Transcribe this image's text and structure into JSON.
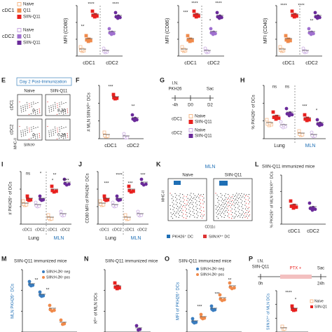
{
  "legend_D": {
    "groups": [
      {
        "name": "cDC1",
        "items": [
          "Naive",
          "Q11",
          "SIIN-Q11"
        ]
      },
      {
        "name": "cDC2",
        "items": [
          "Naive",
          "Q11",
          "SIIN-Q11"
        ]
      }
    ]
  },
  "panels": [
    {
      "y_label": "MFI (CD80)",
      "x_labels": [
        "cDC1",
        "cDC2"
      ],
      "stats": [
        "**",
        "****",
        "****"
      ]
    },
    {
      "y_label": "MFI (CD86)",
      "x_labels": [
        "cDC1",
        "cDC2"
      ],
      "stats": [
        "***",
        "****",
        "*",
        "****"
      ]
    },
    {
      "y_label": "MFI (CD40)",
      "x_labels": [
        "cDC1",
        "cDC2"
      ],
      "stats": [
        "****",
        "****",
        "**"
      ]
    },
    {
      "letter": "E",
      "title": "Day 2 Post-Immunization",
      "columns": [
        "Naive",
        "SIIN-Q11"
      ],
      "rows": [
        "cDC1",
        "cDC2"
      ],
      "gates": [
        "0",
        "8.30",
        "0",
        "0.26"
      ],
      "y_axis": "MHC-II",
      "x_axis": "SIIN:Kᵇ"
    },
    {
      "letter": "F",
      "y_label": "# MLN SIIN:Kᵇ⁺ DCs",
      "x_labels": [
        "cDC1",
        "cDC2"
      ],
      "stats": [
        "***",
        "**"
      ]
    },
    {
      "letter": "G",
      "timeline": [
        "I.N.",
        "PKH26",
        "Sac",
        "-4h",
        "D0",
        "D2"
      ],
      "legend": [
        {
          "name": "cDC1",
          "items": [
            "Naive",
            "SIIN-Q11"
          ]
        },
        {
          "name": "cDC2",
          "items": [
            "Naive",
            "SIIN-Q11"
          ]
        }
      ]
    },
    {
      "letter": "H",
      "y_label": "% PKH26⁺ of DCs",
      "x_labels": [
        "Lung",
        "MLN"
      ],
      "stats": [
        "ns",
        "ns",
        "***",
        "*"
      ]
    },
    {
      "letter": "I",
      "y_label": "# PKH26⁺ of DCs",
      "x_labels": [
        "cDC1",
        "cDC2",
        "cDC1",
        "cDC2"
      ],
      "regions": [
        "Lung",
        "MLN"
      ],
      "stats": [
        "ns",
        "*",
        "*",
        "**",
        "****"
      ]
    },
    {
      "letter": "J",
      "y_label": "CD80 MFI of PKH26⁺ DCs",
      "x_labels": [
        "cDC1",
        "cDC2",
        "cDC1",
        "cDC2"
      ],
      "regions": [
        "Lung",
        "MLN"
      ],
      "stats": [
        "***",
        "****",
        "***",
        "***"
      ]
    },
    {
      "letter": "K",
      "title": "MLN",
      "columns": [
        "Naive",
        "SIIN-Q11"
      ],
      "y_axis": "MHC-II",
      "x_axis": "CD11c",
      "legend": [
        "PKH26⁺ DC",
        "SIIN:Kᵇ⁺ DC"
      ]
    },
    {
      "letter": "L",
      "title": "SIIN-Q11 immunized mice",
      "y_label": "% PKH26⁺ of MLN SIIN:Kᵇ⁺ DCs",
      "x_labels": [
        "cDC1",
        "cDC2"
      ]
    },
    {
      "letter": "M",
      "title": "SIIN-Q11 immunized mice",
      "y_label": "MLN PKH26⁺ DCs",
      "legend": [
        "SIIN:H-2Kᵇ neg",
        "SIIN:H-2Kᵇ pos"
      ],
      "stats": [
        "**",
        "**"
      ]
    },
    {
      "letter": "N",
      "title": "SIIN-Q11 immunized mice",
      "y_label": "Kᵇ⁺ of MLN DCs"
    },
    {
      "letter": "O",
      "title": "SIIN-Q11 immunized mice",
      "y_label": "MFI of PKH26⁺ DCs",
      "legend": [
        "SIIN:H-2Kᵇ neg",
        "SIIN:H-2Kᵇ pos"
      ],
      "stats": [
        "***",
        "***",
        "**"
      ]
    },
    {
      "letter": "P",
      "timeline": [
        "I.N.",
        "SIIN-Q11",
        "PTX +",
        "0h",
        "Sac",
        "24h"
      ],
      "y_label": "SIIN:Kᵇ⁺ of MLN DCs",
      "legend": [
        "Naive",
        "SIIN-Q1"
      ],
      "stats": [
        "****",
        "*"
      ]
    }
  ]
}
